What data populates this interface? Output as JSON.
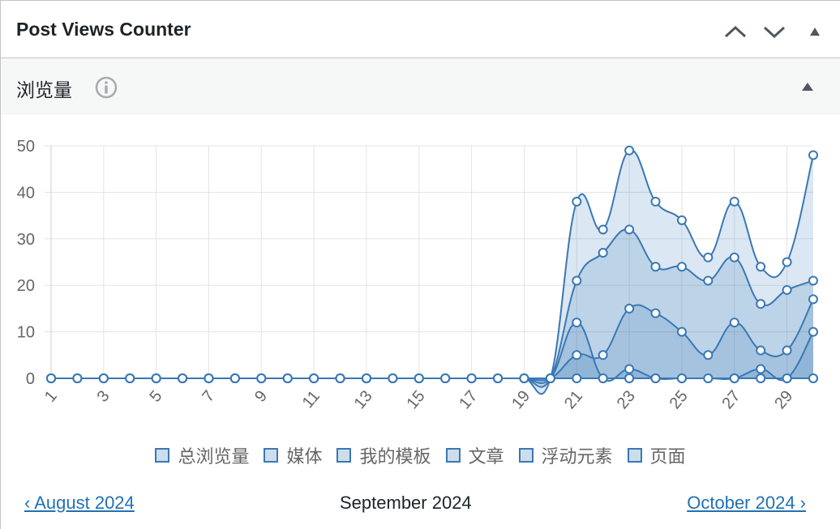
{
  "header": {
    "title": "Post Views Counter"
  },
  "section": {
    "title": "浏览量"
  },
  "chart_data": {
    "type": "line",
    "categories": [
      "1",
      null,
      "3",
      null,
      "5",
      null,
      "7",
      null,
      "9",
      null,
      "11",
      null,
      "13",
      null,
      "15",
      null,
      "17",
      null,
      "19",
      null,
      "21",
      null,
      "23",
      null,
      "25",
      null,
      "27",
      null,
      "29",
      null
    ],
    "series": [
      {
        "name": "总浏览量",
        "color": "#3a78b5",
        "values": [
          0,
          0,
          0,
          0,
          0,
          0,
          0,
          0,
          0,
          0,
          0,
          0,
          0,
          0,
          0,
          0,
          0,
          0,
          0,
          0,
          38,
          32,
          49,
          38,
          34,
          26,
          38,
          24,
          25,
          48
        ]
      },
      {
        "name": "媒体",
        "color": "#3a78b5",
        "values": [
          0,
          0,
          0,
          0,
          0,
          0,
          0,
          0,
          0,
          0,
          0,
          0,
          0,
          0,
          0,
          0,
          0,
          0,
          0,
          0,
          0,
          0,
          0,
          0,
          0,
          0,
          0,
          0,
          0,
          0
        ]
      },
      {
        "name": "我的模板",
        "color": "#3a78b5",
        "values": [
          0,
          0,
          0,
          0,
          0,
          0,
          0,
          0,
          0,
          0,
          0,
          0,
          0,
          0,
          0,
          0,
          0,
          0,
          0,
          0,
          12,
          0,
          2,
          0,
          0,
          0,
          0,
          2,
          0,
          10
        ]
      },
      {
        "name": "文章",
        "color": "#3a78b5",
        "values": [
          0,
          0,
          0,
          0,
          0,
          0,
          0,
          0,
          0,
          0,
          0,
          0,
          0,
          0,
          0,
          0,
          0,
          0,
          0,
          0,
          21,
          27,
          32,
          24,
          24,
          21,
          26,
          16,
          19,
          21
        ]
      },
      {
        "name": "浮动元素",
        "color": "#3a78b5",
        "values": [
          0,
          0,
          0,
          0,
          0,
          0,
          0,
          0,
          0,
          0,
          0,
          0,
          0,
          0,
          0,
          0,
          0,
          0,
          0,
          0,
          0,
          0,
          0,
          0,
          0,
          0,
          0,
          0,
          0,
          0
        ]
      },
      {
        "name": "页面",
        "color": "#3a78b5",
        "values": [
          0,
          0,
          0,
          0,
          0,
          0,
          0,
          0,
          0,
          0,
          0,
          0,
          0,
          0,
          0,
          0,
          0,
          0,
          0,
          0,
          5,
          5,
          15,
          14,
          10,
          5,
          12,
          6,
          6,
          17
        ]
      }
    ],
    "ylim": [
      0,
      50
    ],
    "yticks": [
      0,
      10,
      20,
      30,
      40,
      50
    ],
    "grid": true,
    "fill": true
  },
  "nav": {
    "prev": "‹ August 2024",
    "current": "September 2024",
    "next": "October 2024 ›"
  }
}
